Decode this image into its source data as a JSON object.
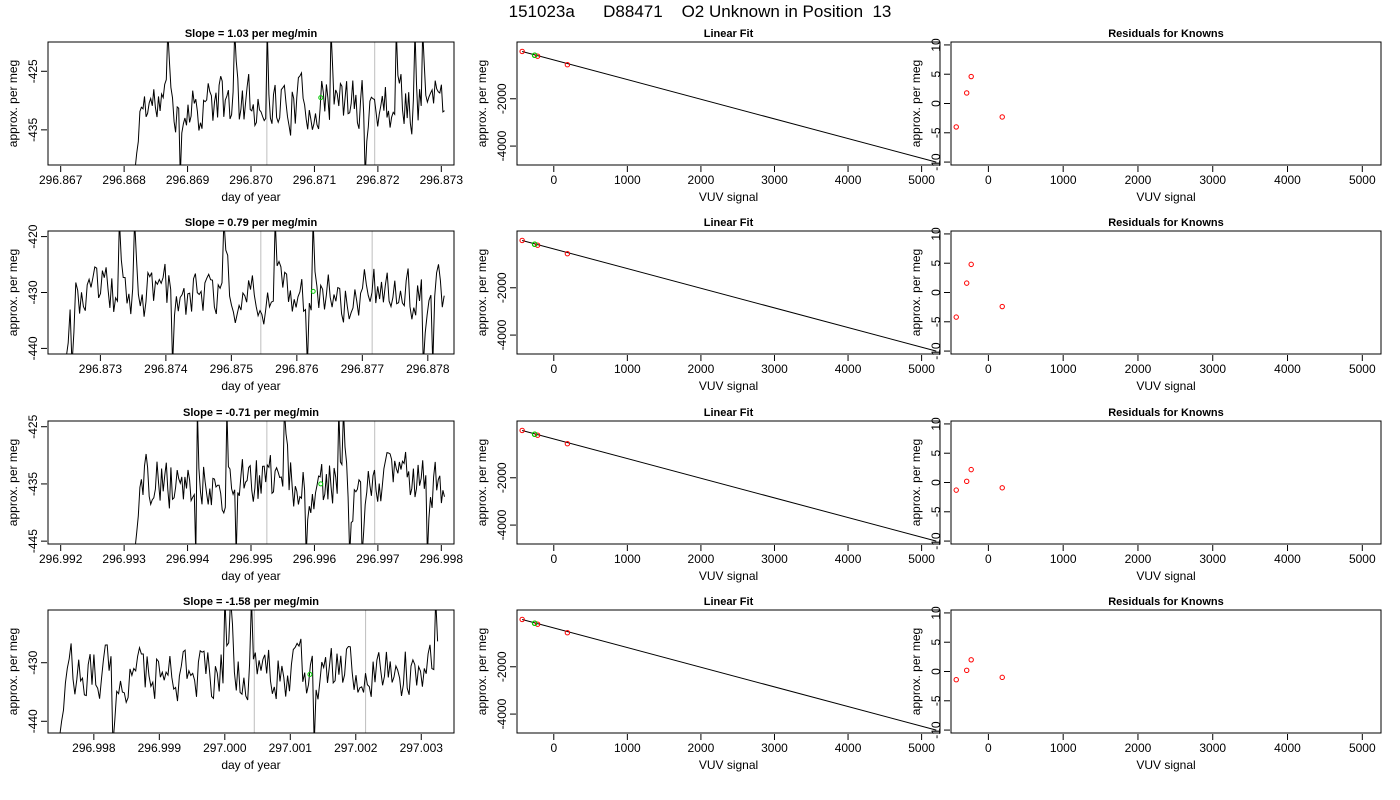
{
  "page_title": "151023a      D88471    O2 Unknown in Position  13",
  "colors": {
    "line": "#000000",
    "known_point": "#ff0000",
    "unknown_point": "#00cc00",
    "vline": "#bebebe"
  },
  "chart_data": [
    {
      "type": "line",
      "row": 0,
      "panel": "time",
      "title": "Slope =  1.03  per meg/min",
      "xlabel": "day of year",
      "ylabel": "approx. per meg",
      "xlim": [
        296.8668,
        296.8732
      ],
      "ylim": [
        -441,
        -420
      ],
      "xticks": [
        "296.867",
        "296.868",
        "296.869",
        "296.870",
        "296.871",
        "296.872",
        "296.873"
      ],
      "yticks": [
        "-425",
        "-435"
      ],
      "data_start": 296.86815,
      "data_end": 296.87305,
      "vlines": [
        296.87025,
        296.87195
      ],
      "unknown_point": [
        296.8711,
        -429.5
      ],
      "seed": 11
    },
    {
      "type": "scatter",
      "row": 0,
      "panel": "fit",
      "title": "Linear Fit",
      "xlabel": "VUV signal",
      "ylabel": "approx. per meg",
      "xlim": [
        -500,
        5250
      ],
      "ylim": [
        -4800,
        400
      ],
      "xticks": [
        "0",
        "1000",
        "2000",
        "3000",
        "4000",
        "5000"
      ],
      "yticks": [
        "-2000",
        "-4000"
      ],
      "line": [
        [
          -430,
          0
        ],
        [
          5200,
          -4680
        ]
      ],
      "knowns": [
        [
          -430,
          0
        ],
        [
          -260,
          -160
        ],
        [
          -220,
          -200
        ],
        [
          185,
          -560
        ]
      ],
      "unknowns": [
        [
          -260,
          -160
        ]
      ]
    },
    {
      "type": "scatter",
      "row": 0,
      "panel": "resid",
      "title": "Residuals for Knowns",
      "xlabel": "VUV signal",
      "ylabel": "approx. per meg",
      "xlim": [
        -500,
        5250
      ],
      "ylim": [
        -10.5,
        10.5
      ],
      "xticks": [
        "0",
        "1000",
        "2000",
        "3000",
        "4000",
        "5000"
      ],
      "yticks": [
        "10",
        "5",
        "0",
        "-5",
        "-10"
      ],
      "points": [
        [
          -430,
          -4
        ],
        [
          -290,
          1.8
        ],
        [
          -230,
          4.6
        ],
        [
          185,
          -2.3
        ]
      ]
    },
    {
      "type": "line",
      "row": 1,
      "panel": "time",
      "title": "Slope =  0.79  per meg/min",
      "xlabel": "day of year",
      "ylabel": "approx. per meg",
      "xlim": [
        296.8722,
        296.8784
      ],
      "ylim": [
        -441,
        -419
      ],
      "xticks": [
        "296.873",
        "296.874",
        "296.875",
        "296.876",
        "296.877",
        "296.878"
      ],
      "yticks": [
        "-420",
        "-430",
        "-440"
      ],
      "data_start": 296.87245,
      "data_end": 296.87825,
      "vlines": [
        296.87545,
        296.87715
      ],
      "unknown_point": [
        296.87625,
        -429.8
      ],
      "seed": 23
    },
    {
      "type": "scatter",
      "row": 1,
      "panel": "fit",
      "title": "Linear Fit",
      "xlabel": "VUV signal",
      "ylabel": "approx. per meg",
      "xlim": [
        -500,
        5250
      ],
      "ylim": [
        -4800,
        400
      ],
      "xticks": [
        "0",
        "1000",
        "2000",
        "3000",
        "4000",
        "5000"
      ],
      "yticks": [
        "-2000",
        "-4000"
      ],
      "line": [
        [
          -430,
          0
        ],
        [
          5200,
          -4680
        ]
      ],
      "knowns": [
        [
          -430,
          0
        ],
        [
          -260,
          -160
        ],
        [
          -220,
          -200
        ],
        [
          185,
          -560
        ]
      ],
      "unknowns": [
        [
          -260,
          -160
        ]
      ]
    },
    {
      "type": "scatter",
      "row": 1,
      "panel": "resid",
      "title": "Residuals for Knowns",
      "xlabel": "VUV signal",
      "ylabel": "approx. per meg",
      "xlim": [
        -500,
        5250
      ],
      "ylim": [
        -10.5,
        10.5
      ],
      "xticks": [
        "0",
        "1000",
        "2000",
        "3000",
        "4000",
        "5000"
      ],
      "yticks": [
        "10",
        "5",
        "0",
        "-5",
        "-10"
      ],
      "points": [
        [
          -430,
          -4.2
        ],
        [
          -290,
          1.6
        ],
        [
          -230,
          4.8
        ],
        [
          185,
          -2.4
        ]
      ]
    },
    {
      "type": "line",
      "row": 2,
      "panel": "time",
      "title": "Slope =  -0.71  per meg/min",
      "xlabel": "day of year",
      "ylabel": "approx. per meg",
      "xlim": [
        296.9918,
        296.9982
      ],
      "ylim": [
        -445.5,
        -424
      ],
      "xticks": [
        "296.992",
        "296.993",
        "296.994",
        "296.995",
        "296.996",
        "296.997",
        "296.998"
      ],
      "yticks": [
        "-425",
        "-435",
        "-445"
      ],
      "data_start": 296.99315,
      "data_end": 296.99805,
      "vlines": [
        296.99525,
        296.99695
      ],
      "unknown_point": [
        296.9961,
        -435
      ],
      "seed": 37
    },
    {
      "type": "scatter",
      "row": 2,
      "panel": "fit",
      "title": "Linear Fit",
      "xlabel": "VUV signal",
      "ylabel": "approx. per meg",
      "xlim": [
        -500,
        5250
      ],
      "ylim": [
        -4800,
        400
      ],
      "xticks": [
        "0",
        "1000",
        "2000",
        "3000",
        "4000",
        "5000"
      ],
      "yticks": [
        "-2000",
        "-4000"
      ],
      "line": [
        [
          -430,
          0
        ],
        [
          5200,
          -4680
        ]
      ],
      "knowns": [
        [
          -430,
          0
        ],
        [
          -260,
          -160
        ],
        [
          -220,
          -200
        ],
        [
          185,
          -560
        ]
      ],
      "unknowns": [
        [
          -260,
          -160
        ]
      ]
    },
    {
      "type": "scatter",
      "row": 2,
      "panel": "resid",
      "title": "Residuals for Knowns",
      "xlabel": "VUV signal",
      "ylabel": "approx. per meg",
      "xlim": [
        -500,
        5250
      ],
      "ylim": [
        -10.5,
        10.5
      ],
      "xticks": [
        "0",
        "1000",
        "2000",
        "3000",
        "4000",
        "5000"
      ],
      "yticks": [
        "10",
        "5",
        "0",
        "-5",
        "-10"
      ],
      "points": [
        [
          -430,
          -1.3
        ],
        [
          -290,
          0.2
        ],
        [
          -230,
          2.2
        ],
        [
          185,
          -0.9
        ]
      ]
    },
    {
      "type": "line",
      "row": 3,
      "panel": "time",
      "title": "Slope =  -1.58  per meg/min",
      "xlabel": "day of year",
      "ylabel": "approx. per meg",
      "xlim": [
        296.9973,
        297.0035
      ],
      "ylim": [
        -442,
        -421
      ],
      "xticks": [
        "296.998",
        "296.999",
        "297.000",
        "297.001",
        "297.002",
        "297.003"
      ],
      "yticks": [
        "-430",
        "-440"
      ],
      "data_start": 296.99745,
      "data_end": 297.00325,
      "vlines": [
        297.00045,
        297.00215
      ],
      "unknown_point": [
        297.0013,
        -432
      ],
      "seed": 53
    },
    {
      "type": "scatter",
      "row": 3,
      "panel": "fit",
      "title": "Linear Fit",
      "xlabel": "VUV signal",
      "ylabel": "approx. per meg",
      "xlim": [
        -500,
        5250
      ],
      "ylim": [
        -4800,
        400
      ],
      "xticks": [
        "0",
        "1000",
        "2000",
        "3000",
        "4000",
        "5000"
      ],
      "yticks": [
        "-2000",
        "-4000"
      ],
      "line": [
        [
          -430,
          0
        ],
        [
          5200,
          -4680
        ]
      ],
      "knowns": [
        [
          -430,
          0
        ],
        [
          -260,
          -160
        ],
        [
          -220,
          -200
        ],
        [
          185,
          -560
        ]
      ],
      "unknowns": [
        [
          -260,
          -160
        ]
      ]
    },
    {
      "type": "scatter",
      "row": 3,
      "panel": "resid",
      "title": "Residuals for Knowns",
      "xlabel": "VUV signal",
      "ylabel": "approx. per meg",
      "xlim": [
        -500,
        5250
      ],
      "ylim": [
        -10.5,
        10.5
      ],
      "xticks": [
        "0",
        "1000",
        "2000",
        "3000",
        "4000",
        "5000"
      ],
      "yticks": [
        "10",
        "5",
        "0",
        "-5",
        "-10"
      ],
      "points": [
        [
          -430,
          -1.4
        ],
        [
          -290,
          0.2
        ],
        [
          -230,
          2.0
        ],
        [
          185,
          -1.0
        ]
      ]
    }
  ]
}
